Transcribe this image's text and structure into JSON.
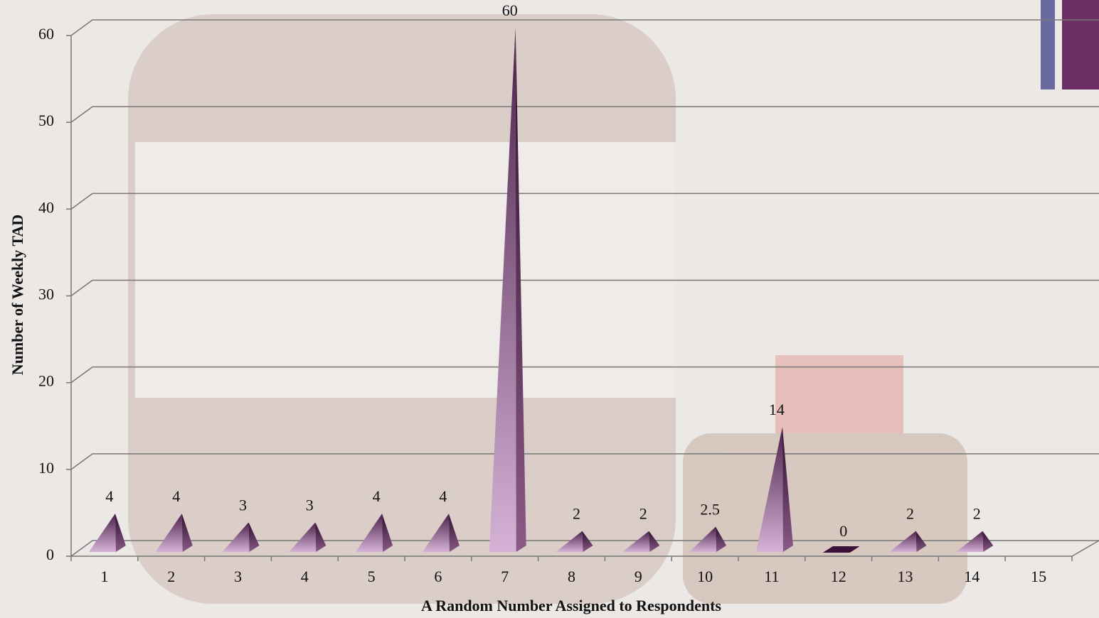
{
  "chart_data": {
    "type": "pyramid3d",
    "x_label": "A Random Number Assigned to Respondents",
    "y_label": "Number of Weekly TAD",
    "categories": [
      "1",
      "2",
      "3",
      "4",
      "5",
      "6",
      "7",
      "8",
      "9",
      "10",
      "11",
      "12",
      "13",
      "14",
      "15"
    ],
    "values": [
      4,
      4,
      3,
      3,
      4,
      4,
      60,
      2,
      2,
      2.5,
      14,
      0,
      2,
      2,
      null
    ],
    "color": "#8e5a8e",
    "ylim": [
      0,
      60
    ],
    "yticks": [
      0,
      10,
      20,
      30,
      40,
      50,
      60
    ],
    "grid": true
  }
}
